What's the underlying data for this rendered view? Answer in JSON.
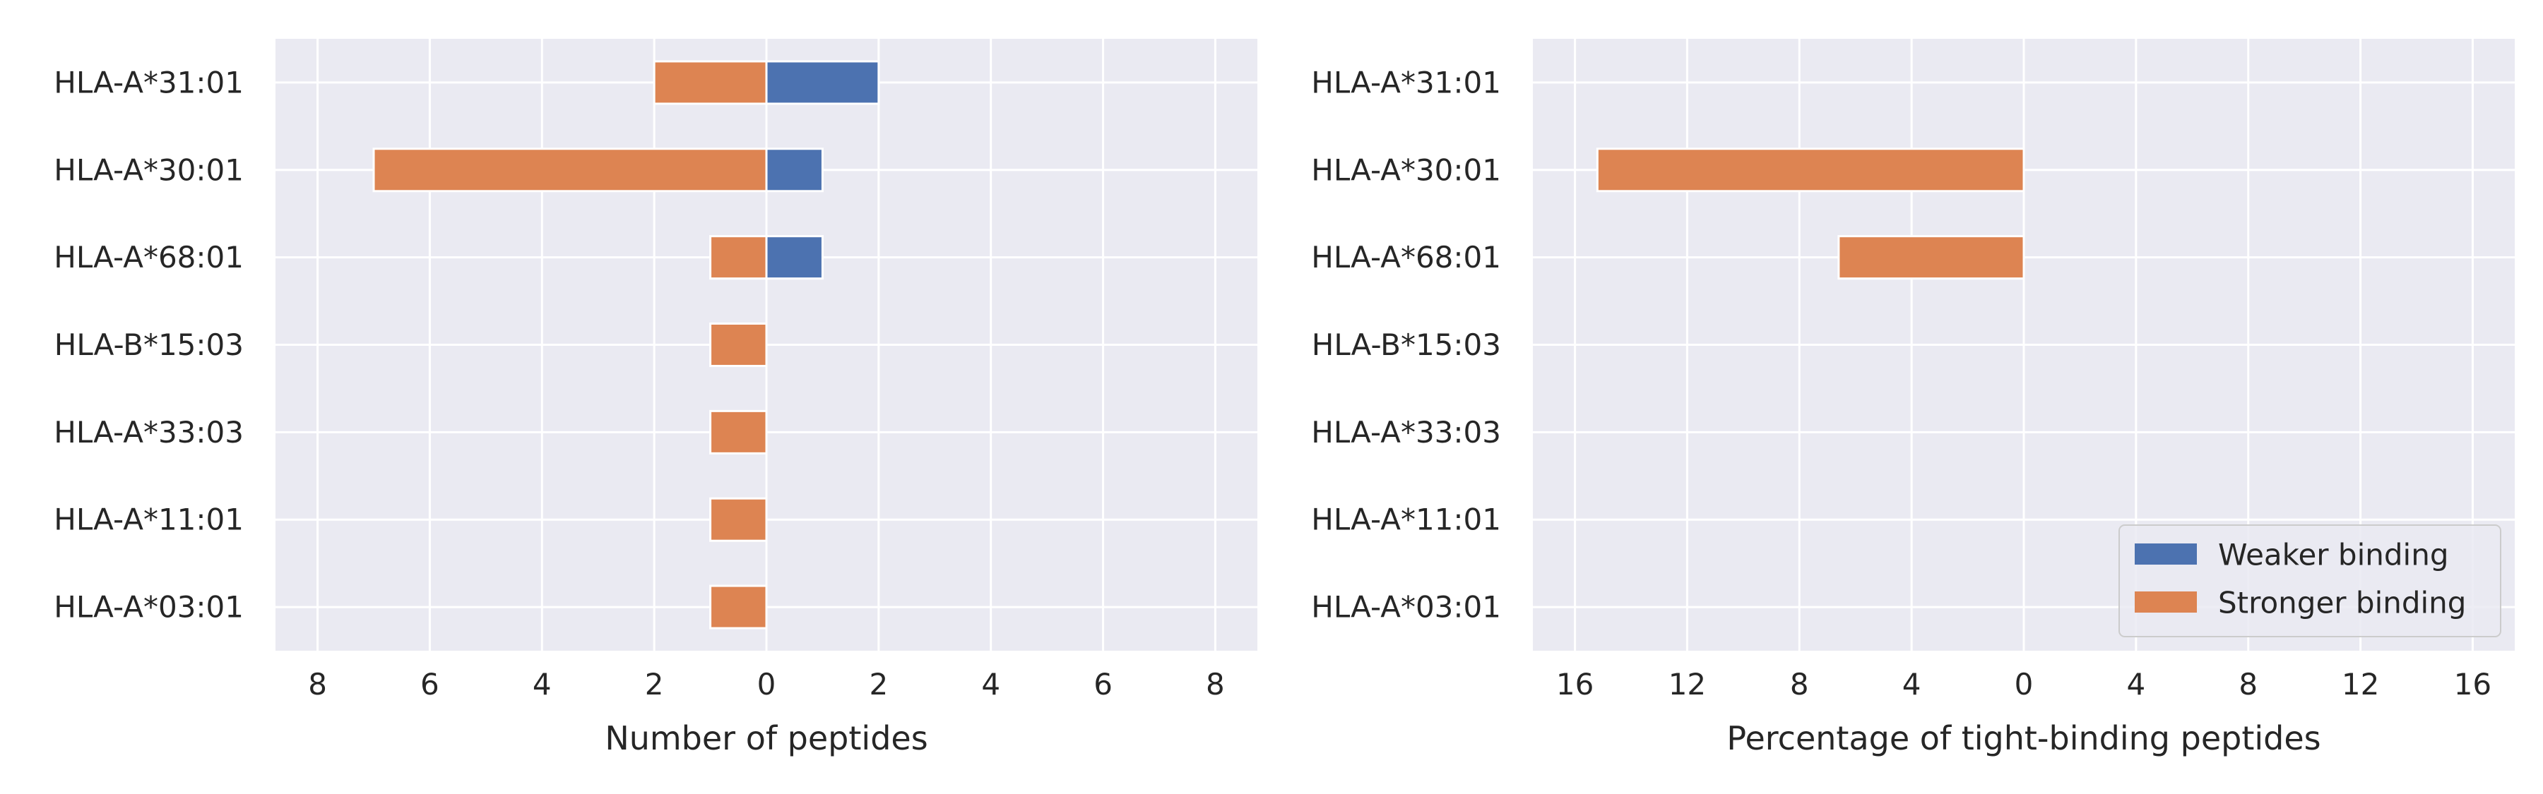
{
  "chart_data": [
    {
      "type": "bar",
      "orientation": "horizontal",
      "stacking": "diverging",
      "categories": [
        "HLA-A*31:01",
        "HLA-A*30:01",
        "HLA-A*68:01",
        "HLA-B*15:03",
        "HLA-A*33:03",
        "HLA-A*11:01",
        "HLA-A*03:01"
      ],
      "series": [
        {
          "name": "Weaker binding",
          "direction": "right",
          "color": "#4c72b0",
          "values": [
            2,
            1,
            1,
            0,
            0,
            0,
            0
          ]
        },
        {
          "name": "Stronger binding",
          "direction": "left",
          "color": "#dd8452",
          "values": [
            2,
            7,
            1,
            1,
            1,
            1,
            1
          ]
        }
      ],
      "xlabel": "Number of peptides",
      "xlim": [
        -8.75,
        8.75
      ],
      "xticks": [
        -8,
        -6,
        -4,
        -2,
        0,
        2,
        4,
        6,
        8
      ],
      "xtick_labels": [
        "8",
        "6",
        "4",
        "2",
        "0",
        "2",
        "4",
        "6",
        "8"
      ],
      "grid": true,
      "background": "#eaeaf2"
    },
    {
      "type": "bar",
      "orientation": "horizontal",
      "stacking": "diverging",
      "categories": [
        "HLA-A*31:01",
        "HLA-A*30:01",
        "HLA-A*68:01",
        "HLA-B*15:03",
        "HLA-A*33:03",
        "HLA-A*11:01",
        "HLA-A*03:01"
      ],
      "series": [
        {
          "name": "Weaker binding",
          "direction": "right",
          "color": "#4c72b0",
          "values": [
            0,
            0,
            0,
            0,
            0,
            0,
            0
          ]
        },
        {
          "name": "Stronger binding",
          "direction": "left",
          "color": "#dd8452",
          "values": [
            0,
            15.2,
            6.6,
            0,
            0,
            0,
            0
          ]
        }
      ],
      "xlabel": "Percentage of tight-binding peptides",
      "xlim": [
        -17.5,
        17.5
      ],
      "xticks": [
        -16,
        -12,
        -8,
        -4,
        0,
        4,
        8,
        12,
        16
      ],
      "xtick_labels": [
        "16",
        "12",
        "8",
        "4",
        "0",
        "4",
        "8",
        "12",
        "16"
      ],
      "grid": true,
      "background": "#eaeaf2",
      "legend": {
        "placement": "lower-right",
        "entries": [
          {
            "label": "Weaker binding",
            "color": "#4c72b0"
          },
          {
            "label": "Stronger binding",
            "color": "#dd8452"
          }
        ]
      }
    }
  ]
}
